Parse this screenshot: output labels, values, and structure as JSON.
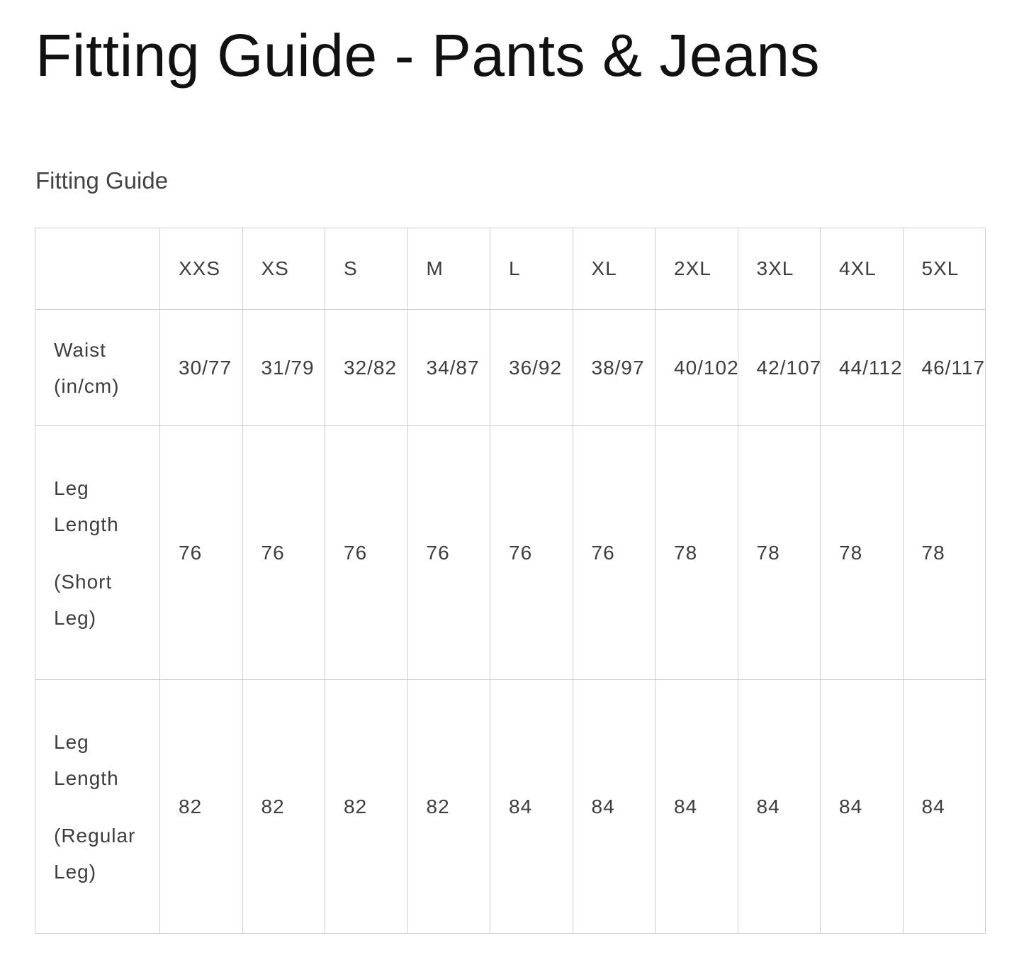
{
  "title": "Fitting Guide - Pants & Jeans",
  "subtitle": "Fitting Guide",
  "table": {
    "corner": "",
    "sizes": [
      "XXS",
      "XS",
      "S",
      "M",
      "L",
      "XL",
      "2XL",
      "3XL",
      "4XL",
      "5XL"
    ],
    "rows": [
      {
        "label": [
          "Waist (in/cm)"
        ],
        "values": [
          "30/77",
          "31/79",
          "32/82",
          "34/87",
          "36/92",
          "38/97",
          "40/102",
          "42/107",
          "44/112",
          "46/117"
        ]
      },
      {
        "label": [
          "Leg Length",
          "(Short Leg)"
        ],
        "values": [
          "76",
          "76",
          "76",
          "76",
          "76",
          "76",
          "78",
          "78",
          "78",
          "78"
        ]
      },
      {
        "label": [
          "Leg Length",
          "(Regular Leg)"
        ],
        "values": [
          "82",
          "82",
          "82",
          "82",
          "84",
          "84",
          "84",
          "84",
          "84",
          "84"
        ]
      }
    ]
  }
}
